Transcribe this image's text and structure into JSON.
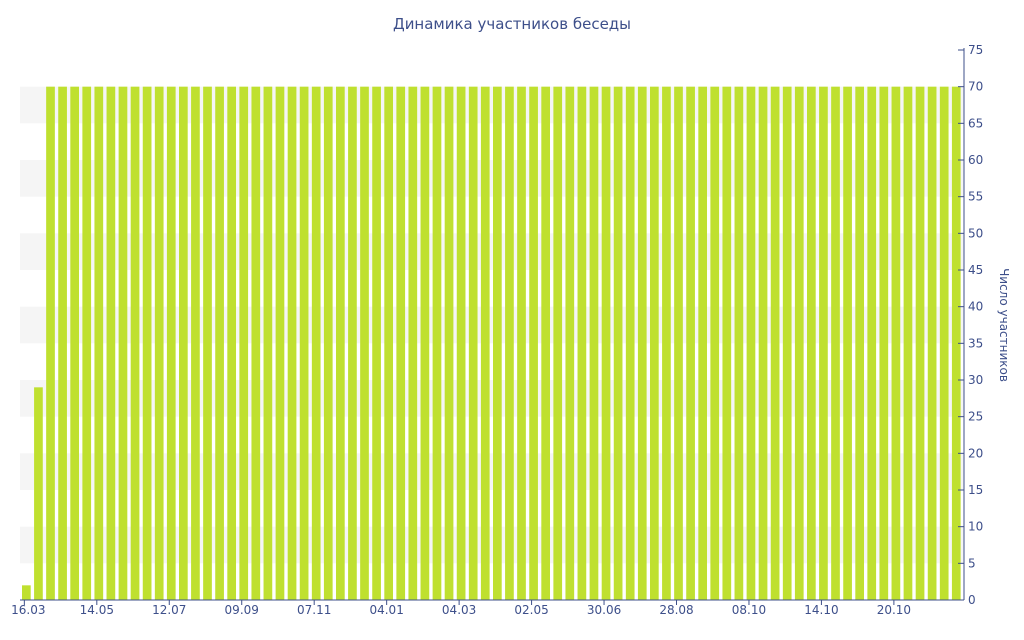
{
  "chart_data": {
    "type": "bar",
    "title": "Динамика участников беседы",
    "xlabel": "",
    "ylabel": "Число участников",
    "ylim": [
      0,
      75
    ],
    "y_axis_position": "right",
    "yticks": [
      "0",
      "5",
      "10",
      "15",
      "20",
      "25",
      "30",
      "35",
      "40",
      "45",
      "50",
      "55",
      "60",
      "65",
      "70",
      "75"
    ],
    "xticks": [
      "16.03",
      "14.05",
      "12.07",
      "09.09",
      "07.11",
      "04.01",
      "04.03",
      "02.05",
      "30.06",
      "28.08",
      "08.10",
      "14.10",
      "20.10"
    ],
    "grid": false,
    "legend": "none",
    "bar_color": "#bfe02f",
    "axis_color": "#3d4f8a",
    "band_color": "#f5f5f5",
    "series": [
      {
        "values": [
          2,
          29,
          70,
          70,
          70,
          70,
          70,
          70,
          70,
          70,
          70,
          70,
          70,
          70,
          70,
          70,
          70,
          70,
          70,
          70,
          70,
          70,
          70,
          70,
          70,
          70,
          70,
          70,
          70,
          70,
          70,
          70,
          70,
          70,
          70,
          70,
          70,
          70,
          70,
          70,
          70,
          70,
          70,
          70,
          70,
          70,
          70,
          70,
          70,
          70,
          70,
          70,
          70,
          70,
          70,
          70,
          70,
          70,
          70,
          70,
          70,
          70,
          70,
          70,
          70,
          70,
          70,
          70,
          70,
          70,
          70,
          70,
          70,
          70,
          70,
          70,
          70,
          70
        ]
      }
    ]
  }
}
